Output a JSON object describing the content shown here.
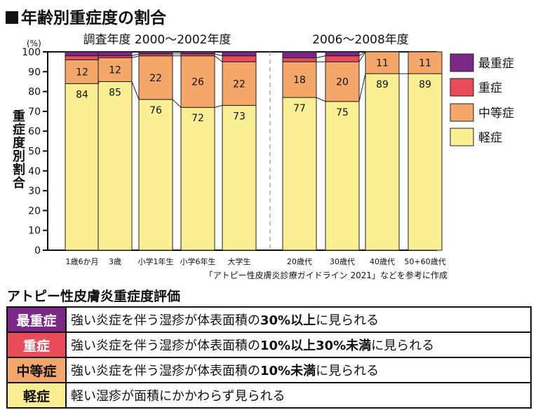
{
  "title": "年齢別重症度の割合",
  "chart_data": {
    "type": "bar",
    "stacked": true,
    "ylabel": "重症度別割合",
    "yunit": "(%)",
    "ylim": [
      0,
      100
    ],
    "yticks": [
      0,
      10,
      20,
      30,
      40,
      50,
      60,
      70,
      80,
      90,
      100
    ],
    "groups": [
      {
        "label": "調査年度 2000〜2002年度",
        "categories": [
          "1歳6か月",
          "3歳",
          "小学1年生",
          "小学6年生",
          "大学生"
        ]
      },
      {
        "label": "2006〜2008年度",
        "categories": [
          "20歳代",
          "30歳代",
          "40歳代",
          "50+60歳代"
        ]
      }
    ],
    "categories": [
      "1歳6か月",
      "3歳",
      "小学1年生",
      "小学6年生",
      "大学生",
      "20歳代",
      "30歳代",
      "40歳代",
      "50+60歳代"
    ],
    "series": [
      {
        "name": "軽症",
        "color": "#fbef94",
        "values": [
          84,
          85,
          76,
          72,
          73,
          77,
          75,
          89,
          89
        ],
        "labels": [
          "84",
          "85",
          "76",
          "72",
          "73",
          "77",
          "75",
          "89",
          "89"
        ]
      },
      {
        "name": "中等症",
        "color": "#f3a76a",
        "values": [
          12,
          12,
          22,
          26,
          22,
          18,
          20,
          11,
          11
        ],
        "labels": [
          "12",
          "12",
          "22",
          "26",
          "22",
          "18",
          "20",
          "11",
          "11"
        ]
      },
      {
        "name": "重症",
        "color": "#e84c58",
        "values": [
          2,
          1,
          1,
          1,
          3,
          2,
          3,
          0,
          0
        ]
      },
      {
        "name": "最重症",
        "color": "#7a2a86",
        "values": [
          2,
          2,
          1,
          1,
          2,
          3,
          2,
          0,
          0
        ]
      }
    ],
    "legend": [
      "最重症",
      "重症",
      "中等症",
      "軽症"
    ],
    "legend_position": "right",
    "source_note": "「アトピー性皮膚炎診療ガイドライン 2021」などを参考に作成"
  },
  "table": {
    "title": "アトピー性皮膚炎重症度評価",
    "rows": [
      {
        "label": "最重症",
        "desc_pre": "強い炎症を伴う湿疹が体表面積の",
        "desc_bold": "30%以上",
        "desc_post": "に見られる"
      },
      {
        "label": "重症",
        "desc_pre": "強い炎症を伴う湿疹が体表面積の",
        "desc_bold": "10%以上30%未満",
        "desc_post": "に見られる"
      },
      {
        "label": "中等症",
        "desc_pre": "強い炎症を伴う湿疹が体表面積の",
        "desc_bold": "10%未満",
        "desc_post": "に見られる"
      },
      {
        "label": "軽症",
        "desc_pre": "軽い湿疹が面積にかかわらず見られる",
        "desc_bold": "",
        "desc_post": ""
      }
    ]
  }
}
